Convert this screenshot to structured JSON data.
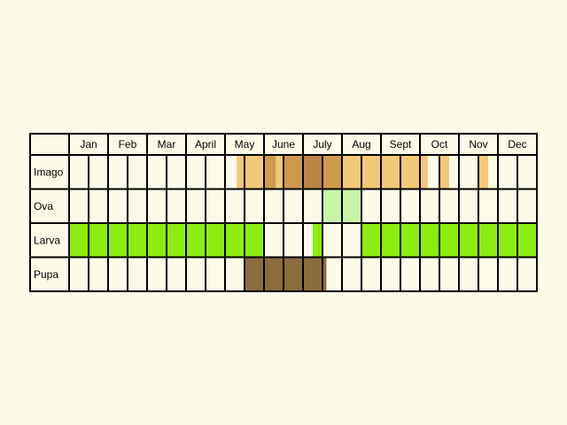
{
  "chart_data": {
    "type": "table",
    "months": [
      "Jan",
      "Feb",
      "Mar",
      "April",
      "May",
      "June",
      "July",
      "Aug",
      "Sept",
      "Oct",
      "Nov",
      "Dec"
    ],
    "stages": [
      {
        "name": "Imago",
        "color": "#f2c977",
        "highlight_color": "#cf9a4f",
        "peak_color": "#ba8544",
        "periods": [
          {
            "start_month": 5.3,
            "end_month": 10.2,
            "intensity": "low"
          },
          {
            "start_month": 6.0,
            "end_month": 6.3,
            "intensity": "mid"
          },
          {
            "start_month": 6.5,
            "end_month": 7.0,
            "intensity": "high"
          },
          {
            "start_month": 7.0,
            "end_month": 7.5,
            "intensity": "peak"
          },
          {
            "start_month": 7.5,
            "end_month": 8.0,
            "intensity": "mid"
          },
          {
            "start_month": 10.5,
            "end_month": 10.75,
            "intensity": "low"
          },
          {
            "start_month": 11.5,
            "end_month": 11.75,
            "intensity": "low"
          }
        ]
      },
      {
        "name": "Ova",
        "color": "#c8f5a8",
        "periods": [
          {
            "start_month": 7.5,
            "end_month": 8.5
          }
        ]
      },
      {
        "name": "Larva",
        "color": "#8ced10",
        "periods": [
          {
            "start_month": 1.0,
            "end_month": 6.0
          },
          {
            "start_month": 7.25,
            "end_month": 7.5
          },
          {
            "start_month": 8.5,
            "end_month": 13.0
          }
        ]
      },
      {
        "name": "Pupa",
        "color": "#8b6c3c",
        "periods": [
          {
            "start_month": 5.5,
            "end_month": 7.6
          }
        ]
      }
    ],
    "subdivisions_per_month": 2
  }
}
